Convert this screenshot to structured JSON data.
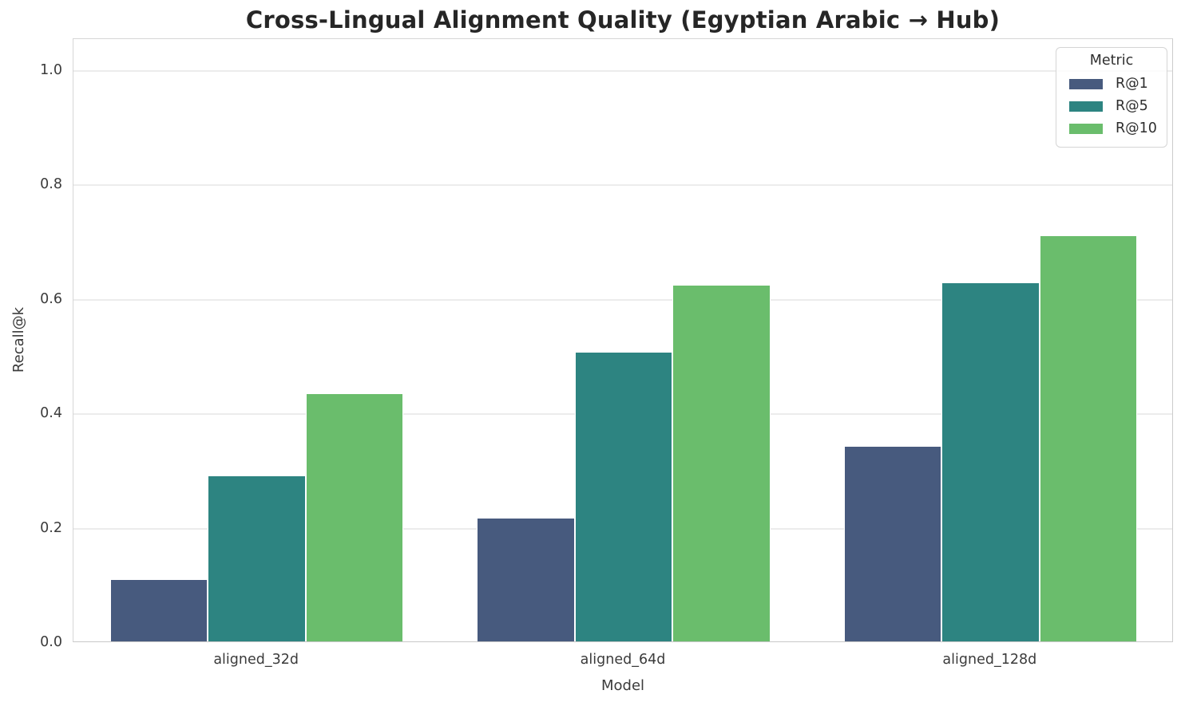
{
  "chart_data": {
    "type": "bar",
    "title": "Cross-Lingual Alignment Quality (Egyptian Arabic → Hub)",
    "xlabel": "Model",
    "ylabel": "Recall@k",
    "categories": [
      "aligned_32d",
      "aligned_64d",
      "aligned_128d"
    ],
    "series": [
      {
        "name": "R@1",
        "color": "#475a7e",
        "values": [
          0.107,
          0.215,
          0.341
        ]
      },
      {
        "name": "R@5",
        "color": "#2d8481",
        "values": [
          0.289,
          0.505,
          0.626
        ]
      },
      {
        "name": "R@10",
        "color": "#6abd6c",
        "values": [
          0.432,
          0.622,
          0.709
        ]
      }
    ],
    "legend": {
      "title": "Metric",
      "position": "upper right"
    },
    "ylim": [
      0.0,
      1.05
    ],
    "yticks": [
      0.0,
      0.2,
      0.4,
      0.6,
      0.8,
      1.0
    ],
    "ytick_labels": [
      "0.0",
      "0.2",
      "0.4",
      "0.6",
      "0.8",
      "1.0"
    ],
    "grid": "horizontal",
    "group_width_fraction": 0.8
  },
  "style": {
    "background": "#ffffff",
    "gridline_color": "#ececec",
    "spine_color": "#d0d0d0",
    "tick_text_color": "#3b3b3b",
    "title_color": "#262626"
  }
}
